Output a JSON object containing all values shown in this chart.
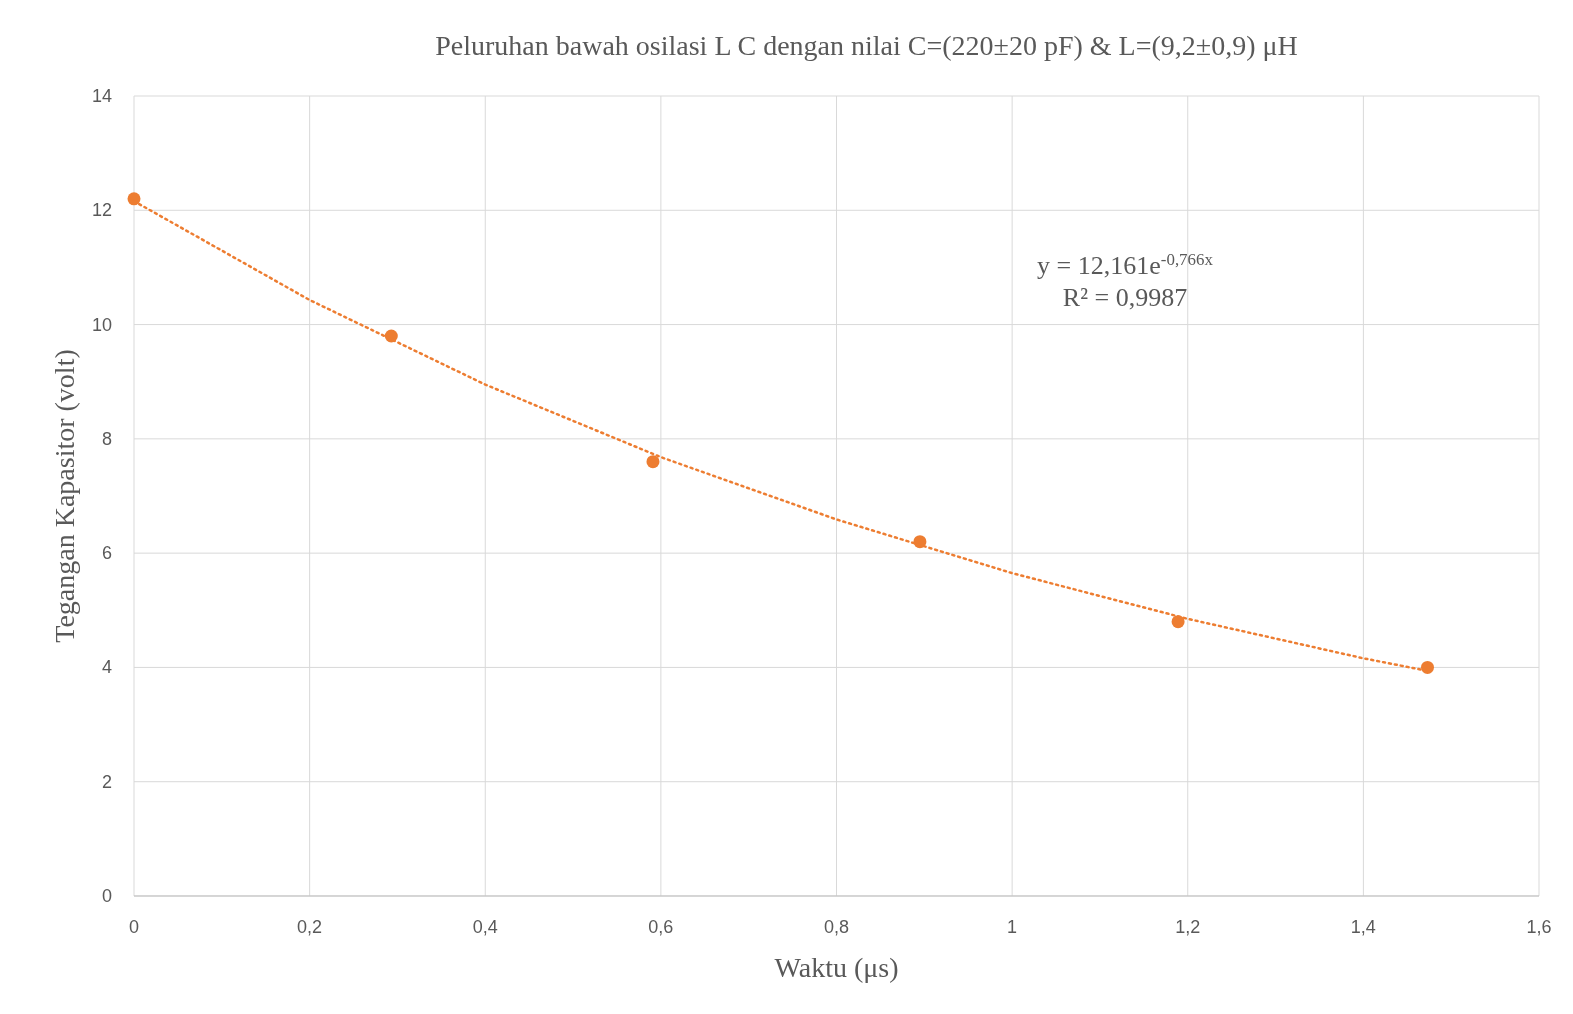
{
  "chart_data": {
    "type": "scatter",
    "title": "Peluruhan bawah osilasi  L C dengan nilai C=(220±20 pF)  & L=(9,2±0,9)  μH",
    "xlabel": "Waktu (μs)",
    "ylabel": "Tegangan Kapasitor (volt)",
    "x": [
      0,
      0.293,
      0.591,
      0.895,
      1.189,
      1.473
    ],
    "series": [
      {
        "color": "#ed7d31",
        "marker": "circle",
        "values": [
          12.2,
          9.8,
          7.6,
          6.2,
          4.8,
          4.0
        ]
      },
      {
        "type": "line",
        "color": "#ed7d31",
        "line_style": "dotted",
        "x": [
          0,
          0.2,
          0.4,
          0.6,
          0.8,
          1.0,
          1.2,
          1.4,
          1.473
        ],
        "values": [
          12.16,
          10.43,
          8.95,
          7.68,
          6.59,
          5.65,
          4.85,
          4.16,
          3.94
        ]
      }
    ],
    "xlim": [
      0,
      1.6
    ],
    "xticks": [
      0,
      {
        "value": 0.2,
        "label": "0,2"
      },
      {
        "value": 0.4,
        "label": "0,4"
      },
      {
        "value": 0.6,
        "label": "0,6"
      },
      {
        "value": 0.8,
        "label": "0,8"
      },
      1,
      {
        "value": 1.2,
        "label": "1,2"
      },
      {
        "value": 1.4,
        "label": "1,4"
      },
      {
        "value": 1.6,
        "label": "1,6"
      }
    ],
    "ylim": [
      0,
      14
    ],
    "yticks": [
      0,
      2,
      4,
      6,
      8,
      10,
      12,
      14
    ],
    "grid": true,
    "annotations": [
      "y = 12,161e$^{-0,766x}$",
      "R² = 0,9987"
    ]
  }
}
